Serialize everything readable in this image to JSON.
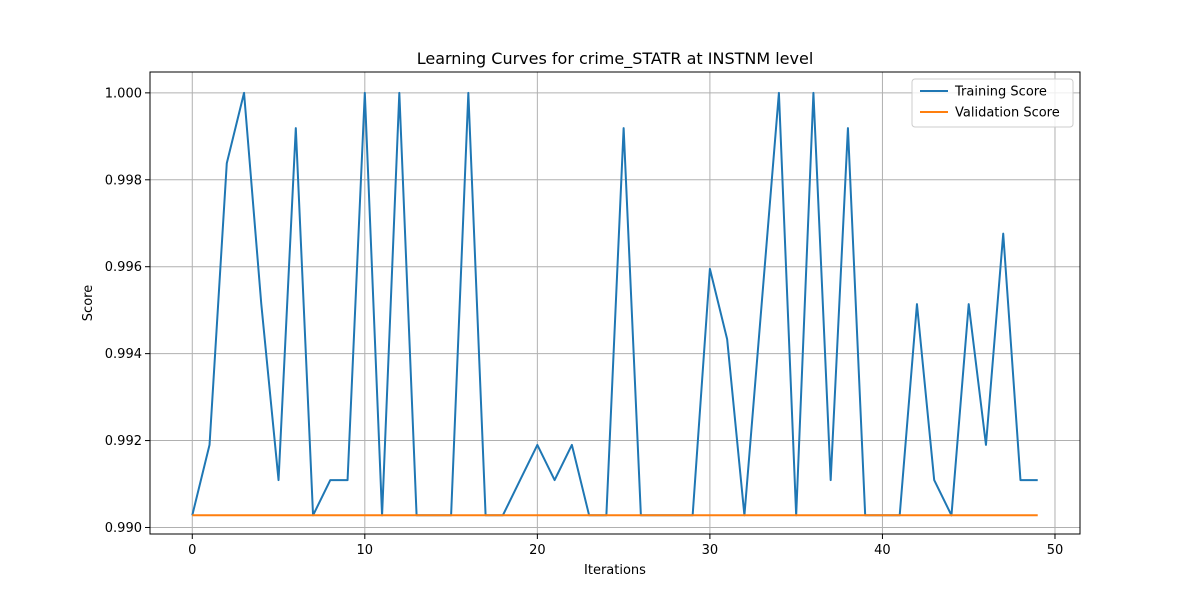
{
  "chart_data": {
    "type": "line",
    "title": "Learning Curves for crime_STATR at INSTNM level",
    "xlabel": "Iterations",
    "ylabel": "Score",
    "xlim": [
      -2.45,
      51.45
    ],
    "ylim": [
      0.98985,
      1.00048
    ],
    "xticks": [
      0,
      10,
      20,
      30,
      40,
      50
    ],
    "xtick_labels": [
      "0",
      "10",
      "20",
      "30",
      "40",
      "50"
    ],
    "yticks": [
      0.99,
      0.992,
      0.994,
      0.996,
      0.998,
      1.0
    ],
    "ytick_labels": [
      "0.990",
      "0.992",
      "0.994",
      "0.996",
      "0.998",
      "1.000"
    ],
    "grid": true,
    "legend_position": "upper right",
    "x": [
      0,
      1,
      2,
      3,
      4,
      5,
      6,
      7,
      8,
      9,
      10,
      11,
      12,
      13,
      14,
      15,
      16,
      17,
      18,
      19,
      20,
      21,
      22,
      23,
      24,
      25,
      26,
      27,
      28,
      29,
      30,
      31,
      32,
      33,
      34,
      35,
      36,
      37,
      38,
      39,
      40,
      41,
      42,
      43,
      44,
      45,
      46,
      47,
      48,
      49
    ],
    "series": [
      {
        "name": "Training Score",
        "color": "#1f77b4",
        "values": [
          0.99028,
          0.9919,
          0.99838,
          1.0,
          0.99514,
          0.99109,
          0.99919,
          0.99028,
          0.99109,
          0.99109,
          1.0,
          0.99028,
          1.0,
          0.99028,
          0.99028,
          0.99028,
          1.0,
          0.99028,
          0.99028,
          0.99109,
          0.9919,
          0.99109,
          0.9919,
          0.99028,
          0.99028,
          0.99919,
          0.99028,
          0.99028,
          0.99028,
          0.99028,
          0.99595,
          0.99433,
          0.99028,
          0.99514,
          1.0,
          0.99028,
          1.0,
          0.99109,
          0.99919,
          0.99028,
          0.99028,
          0.99028,
          0.99514,
          0.99109,
          0.99028,
          0.99514,
          0.9919,
          0.99676,
          0.99109,
          0.99109
        ]
      },
      {
        "name": "Validation Score",
        "color": "#ff7f0e",
        "values": [
          0.99028,
          0.99028,
          0.99028,
          0.99028,
          0.99028,
          0.99028,
          0.99028,
          0.99028,
          0.99028,
          0.99028,
          0.99028,
          0.99028,
          0.99028,
          0.99028,
          0.99028,
          0.99028,
          0.99028,
          0.99028,
          0.99028,
          0.99028,
          0.99028,
          0.99028,
          0.99028,
          0.99028,
          0.99028,
          0.99028,
          0.99028,
          0.99028,
          0.99028,
          0.99028,
          0.99028,
          0.99028,
          0.99028,
          0.99028,
          0.99028,
          0.99028,
          0.99028,
          0.99028,
          0.99028,
          0.99028,
          0.99028,
          0.99028,
          0.99028,
          0.99028,
          0.99028,
          0.99028,
          0.99028,
          0.99028,
          0.99028,
          0.99028
        ]
      }
    ]
  }
}
